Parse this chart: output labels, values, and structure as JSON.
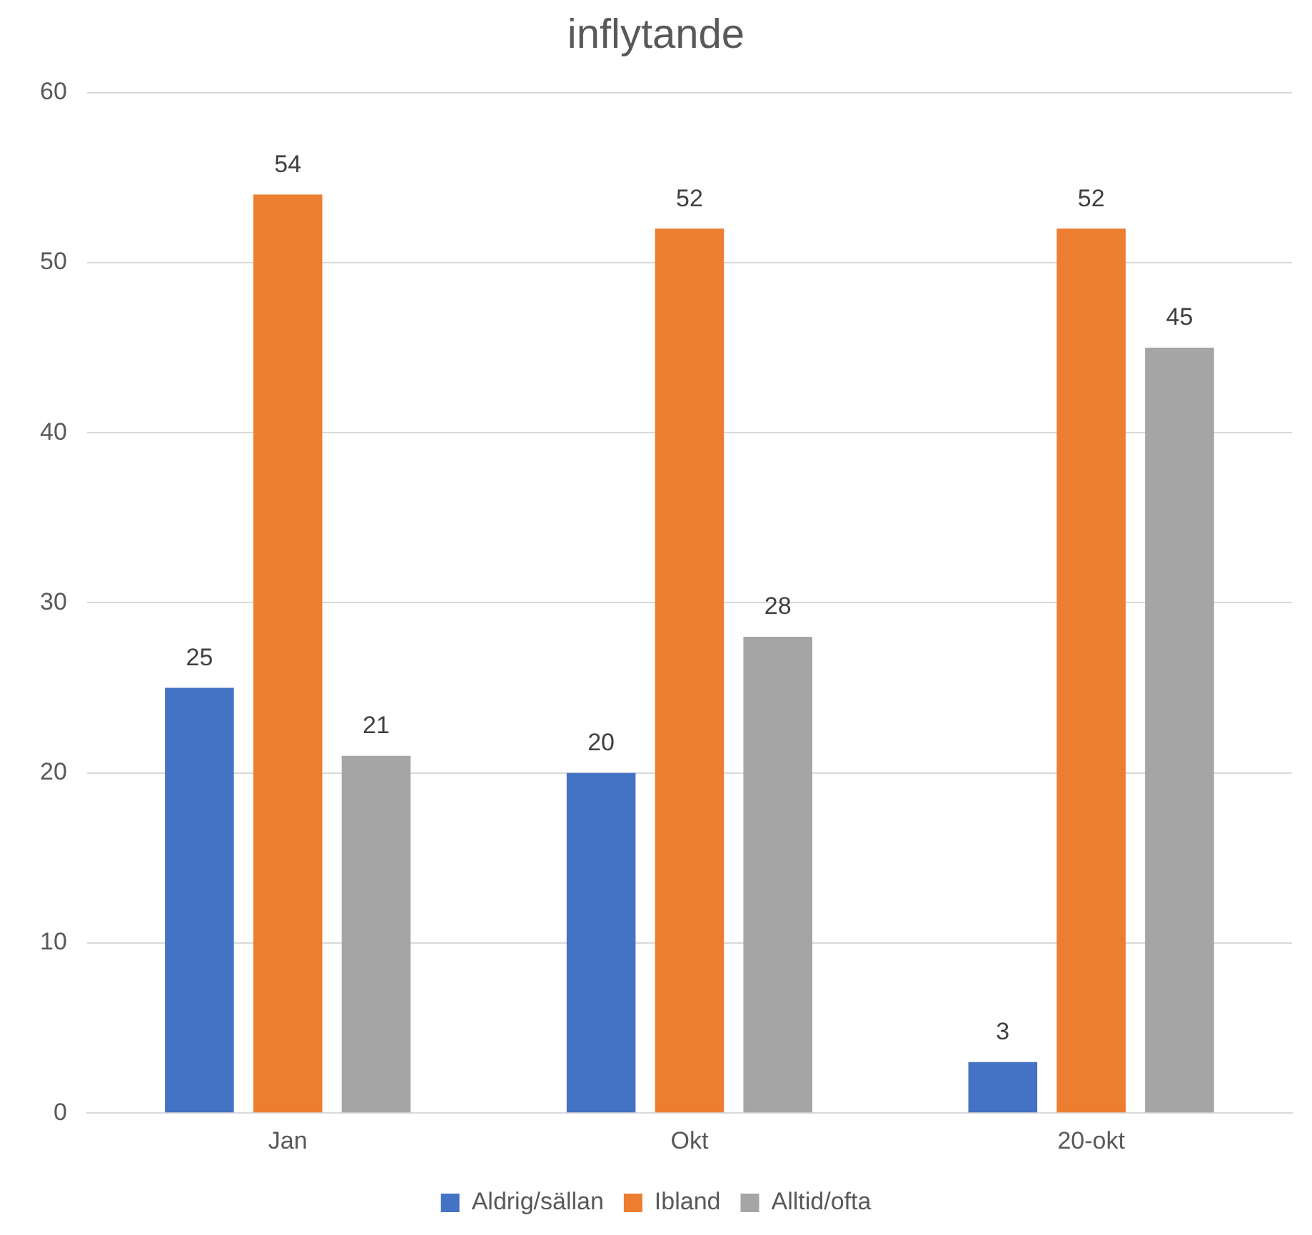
{
  "chart_data": {
    "type": "bar",
    "title": "inflytande",
    "categories": [
      "Jan",
      "Okt",
      "20-okt"
    ],
    "series": [
      {
        "name": "Aldrig/sällan",
        "color": "#4472c4",
        "values": [
          25,
          20,
          3
        ]
      },
      {
        "name": "Ibland",
        "color": "#ed7d31",
        "values": [
          54,
          52,
          52
        ]
      },
      {
        "name": "Alltid/ofta",
        "color": "#a5a5a5",
        "values": [
          21,
          28,
          45
        ]
      }
    ],
    "ylim": [
      0,
      60
    ],
    "yticks": [
      0,
      10,
      20,
      30,
      40,
      50,
      60
    ],
    "grid": "y",
    "legend": "bottom",
    "data_labels": true
  }
}
